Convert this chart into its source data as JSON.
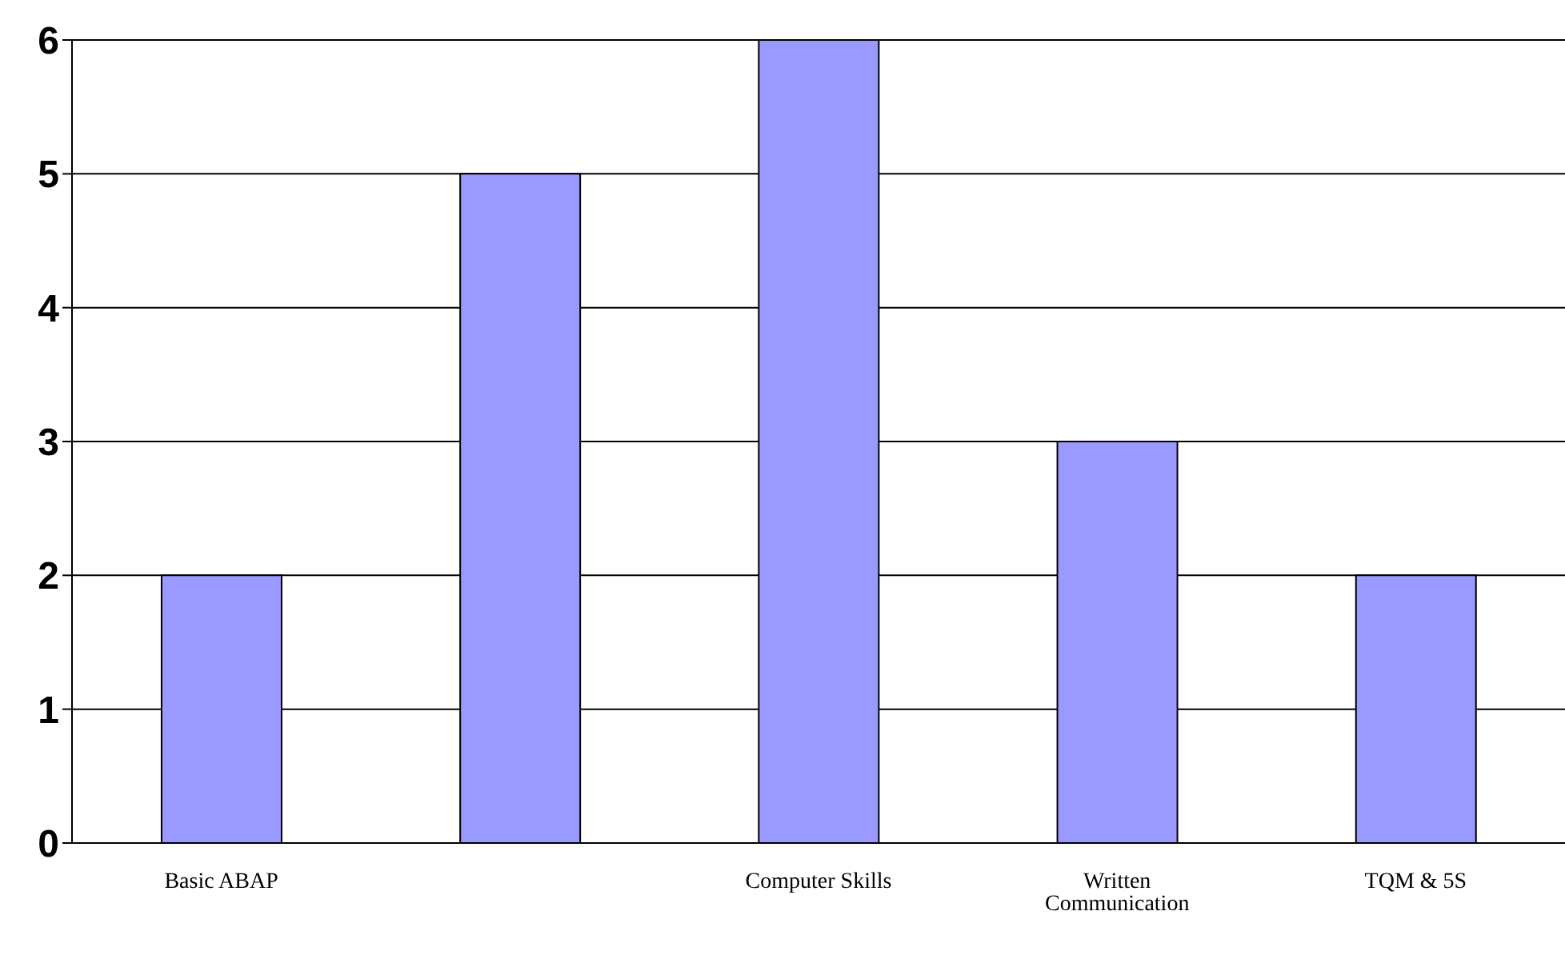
{
  "chart_data": {
    "type": "bar",
    "categories": [
      "Basic ABAP",
      null,
      "Computer Skills",
      "Written Communication",
      "TQM & 5S"
    ],
    "values": [
      2,
      5,
      6,
      3,
      2
    ],
    "color": "#9999ff",
    "ylim": [
      0,
      6
    ],
    "yticks": [
      0,
      1,
      2,
      3,
      4,
      5,
      6
    ],
    "grid": "y"
  }
}
